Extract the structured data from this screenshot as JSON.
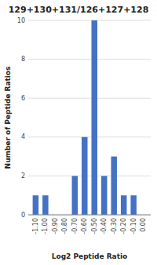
{
  "chart_data": {
    "type": "bar",
    "title": "129+130+131/126+127+128",
    "xlabel": "Log2 Peptide Ratio",
    "ylabel": "Number of Peptide Ratios",
    "x": [
      -1.1,
      -1.0,
      -0.9,
      -0.8,
      -0.7,
      -0.6,
      -0.5,
      -0.4,
      -0.3,
      -0.2,
      -0.1,
      0.0
    ],
    "values": [
      1,
      1,
      0,
      0,
      2,
      4,
      10,
      2,
      3,
      1,
      1,
      0
    ],
    "color": "#4472C4",
    "xlim": [
      -1.175,
      0.075
    ],
    "xticks": [
      {
        "value": -1.1,
        "label": "-1.10"
      },
      {
        "value": -1.0,
        "label": "-1.00"
      },
      {
        "value": -0.9,
        "label": "-0.90"
      },
      {
        "value": -0.8,
        "label": "-0.80"
      },
      {
        "value": -0.7,
        "label": "-0.70"
      },
      {
        "value": -0.6,
        "label": "-0.60"
      },
      {
        "value": -0.5,
        "label": "-0.50"
      },
      {
        "value": -0.4,
        "label": "-0.40"
      },
      {
        "value": -0.3,
        "label": "-0.30"
      },
      {
        "value": -0.2,
        "label": "-0.20"
      },
      {
        "value": -0.1,
        "label": "-0.10"
      },
      {
        "value": 0,
        "label": "0.00"
      }
    ],
    "ylim": [
      0,
      10
    ],
    "yticks": [
      0,
      2,
      4,
      6,
      8,
      10
    ],
    "grid": true
  }
}
